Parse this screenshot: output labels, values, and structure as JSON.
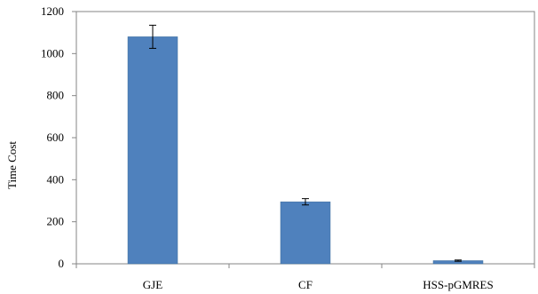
{
  "chart_data": {
    "type": "bar",
    "title": "",
    "xlabel": "",
    "ylabel": "Time Cost",
    "categories": [
      "GJE",
      "CF",
      "HSS-pGMRES"
    ],
    "series": [
      {
        "values": [
          1080,
          295,
          15
        ],
        "error": [
          55,
          15,
          3
        ]
      }
    ],
    "ylim": [
      0,
      1200
    ],
    "yticks": [
      0,
      200,
      400,
      600,
      800,
      1000,
      1200
    ],
    "grid": false,
    "legend": "none",
    "colors": {
      "bar": "#4f81bd",
      "bar_edge": "#41709c",
      "axis": "#868686",
      "error": "#000000"
    }
  }
}
